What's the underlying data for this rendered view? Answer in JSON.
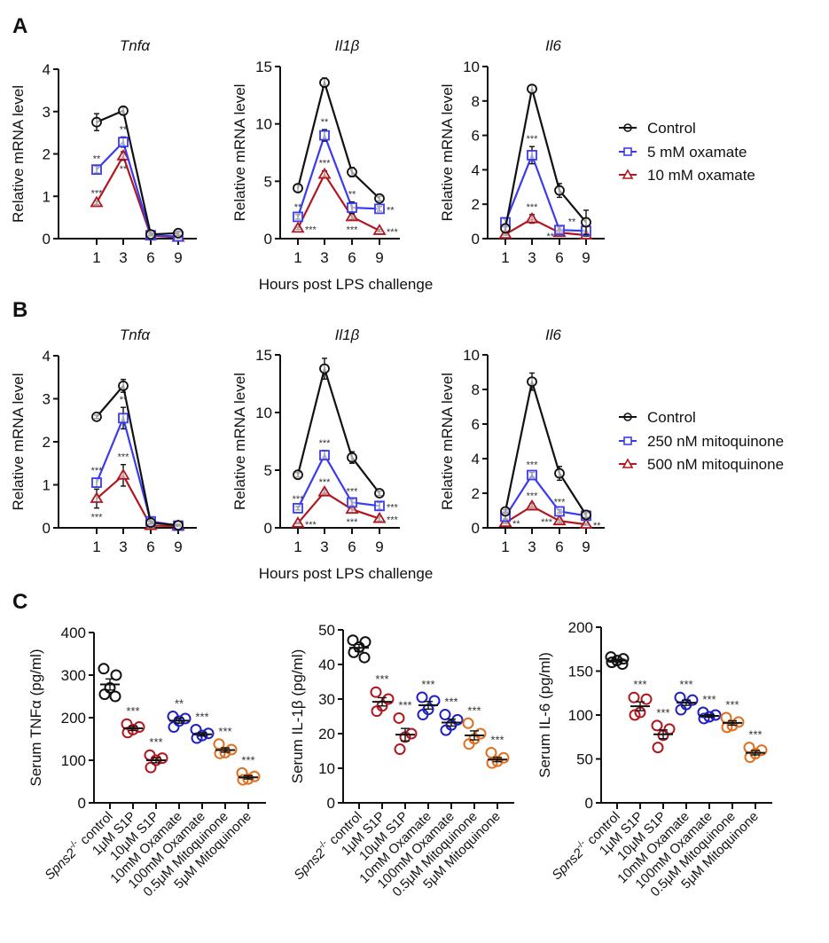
{
  "panels": {
    "A": {
      "letter": "A",
      "xlabel": "Hours post LPS challenge",
      "legend": [
        "Control",
        "5 mM oxamate",
        "10 mM oxamate"
      ]
    },
    "B": {
      "letter": "B",
      "xlabel": "Hours post LPS challenge",
      "legend": [
        "Control",
        "250 nM mitoquinone",
        "500 nM mitoquinone"
      ]
    },
    "C": {
      "letter": "C"
    }
  },
  "colors": {
    "control": "#111111",
    "low": "#3b3bf0",
    "high": "#b0171f",
    "s1p": "#b0171f",
    "oxamate": "#2020c0",
    "mito": "#e07020"
  },
  "chart_data": [
    {
      "id": "A-tnfa",
      "panel": "A",
      "type": "line",
      "title": "Tnfα",
      "xlabel": "Hours post LPS challenge",
      "ylabel": "Relative mRNA level",
      "x": [
        1,
        3,
        6,
        9
      ],
      "ylim": [
        0,
        4
      ],
      "yticks": [
        0,
        1,
        2,
        3,
        4
      ],
      "series": [
        {
          "name": "Control",
          "values": [
            2.75,
            3.02,
            0.1,
            0.13
          ],
          "err": [
            0.2,
            0.08,
            0.03,
            0.05
          ]
        },
        {
          "name": "5 mM oxamate",
          "values": [
            1.63,
            2.28,
            0.08,
            0.05
          ],
          "err": [
            0.08,
            0.12,
            0.02,
            0.02
          ],
          "stars": [
            "**",
            "**",
            "",
            ""
          ]
        },
        {
          "name": "10 mM oxamate",
          "values": [
            0.85,
            1.95,
            0.07,
            0.03
          ],
          "err": [
            0.04,
            0.1,
            0.02,
            0.02
          ],
          "stars": [
            "***",
            "**",
            "",
            ""
          ]
        }
      ]
    },
    {
      "id": "A-il1b",
      "panel": "A",
      "type": "line",
      "title": "Il1β",
      "xlabel": "Hours post LPS challenge",
      "ylabel": "Relative mRNA level",
      "x": [
        1,
        3,
        6,
        9
      ],
      "ylim": [
        0,
        15
      ],
      "yticks": [
        0,
        5,
        10,
        15
      ],
      "series": [
        {
          "name": "Control",
          "values": [
            4.4,
            13.6,
            5.8,
            3.5
          ],
          "err": [
            0.3,
            0.4,
            0.4,
            0.2
          ]
        },
        {
          "name": "5 mM oxamate",
          "values": [
            1.9,
            9.0,
            2.7,
            2.6
          ],
          "err": [
            0.2,
            0.5,
            0.5,
            0.2
          ],
          "stars": [
            "**",
            "**",
            "**",
            "**"
          ]
        },
        {
          "name": "10 mM oxamate",
          "values": [
            0.9,
            5.6,
            1.9,
            0.7
          ],
          "err": [
            0.1,
            0.3,
            0.2,
            0.1
          ],
          "stars": [
            "***",
            "***",
            "***",
            "***"
          ]
        }
      ]
    },
    {
      "id": "A-il6",
      "panel": "A",
      "type": "line",
      "title": "Il6",
      "xlabel": "Hours post LPS challenge",
      "ylabel": "Relative mRNA level",
      "x": [
        1,
        3,
        6,
        9
      ],
      "ylim": [
        0,
        10
      ],
      "yticks": [
        0,
        2,
        4,
        6,
        8,
        10
      ],
      "series": [
        {
          "name": "Control",
          "values": [
            0.6,
            8.7,
            2.8,
            0.95
          ],
          "err": [
            0.2,
            0.2,
            0.4,
            0.7
          ]
        },
        {
          "name": "5 mM oxamate",
          "values": [
            0.95,
            4.85,
            0.5,
            0.45
          ],
          "err": [
            0.2,
            0.5,
            0.2,
            0.3
          ],
          "stars": [
            "",
            "***",
            "**",
            ""
          ]
        },
        {
          "name": "10 mM oxamate",
          "values": [
            0.25,
            1.15,
            0.35,
            0.2
          ],
          "err": [
            0.05,
            0.25,
            0.1,
            0.05
          ],
          "stars": [
            "",
            "***",
            "**",
            ""
          ]
        }
      ]
    },
    {
      "id": "B-tnfa",
      "panel": "B",
      "type": "line",
      "title": "Tnfα",
      "xlabel": "Hours post LPS challenge",
      "ylabel": "Relative mRNA level",
      "x": [
        1,
        3,
        6,
        9
      ],
      "ylim": [
        0,
        4
      ],
      "yticks": [
        0,
        1,
        2,
        3,
        4
      ],
      "series": [
        {
          "name": "Control",
          "values": [
            2.58,
            3.3,
            0.12,
            0.06
          ],
          "err": [
            0.04,
            0.15,
            0.03,
            0.02
          ]
        },
        {
          "name": "250 nM mitoquinone",
          "values": [
            1.05,
            2.55,
            0.15,
            0.05
          ],
          "err": [
            0.1,
            0.25,
            0.03,
            0.02
          ],
          "stars": [
            "***",
            "**",
            "",
            ""
          ]
        },
        {
          "name": "500 nM mitoquinone",
          "values": [
            0.68,
            1.22,
            0.05,
            0.04
          ],
          "err": [
            0.22,
            0.25,
            0.02,
            0.02
          ],
          "stars": [
            "***",
            "***",
            "",
            ""
          ]
        }
      ]
    },
    {
      "id": "B-il1b",
      "panel": "B",
      "type": "line",
      "title": "Il1β",
      "xlabel": "Hours post LPS challenge",
      "ylabel": "Relative mRNA level",
      "x": [
        1,
        3,
        6,
        9
      ],
      "ylim": [
        0,
        15
      ],
      "yticks": [
        0,
        5,
        10,
        15
      ],
      "series": [
        {
          "name": "Control",
          "values": [
            4.6,
            13.8,
            6.1,
            3.0
          ],
          "err": [
            0.2,
            0.9,
            0.5,
            0.2
          ]
        },
        {
          "name": "250 nM mitoquinone",
          "values": [
            1.7,
            6.3,
            2.2,
            1.9
          ],
          "err": [
            0.15,
            0.4,
            0.3,
            0.3
          ],
          "stars": [
            "***",
            "***",
            "***",
            "***"
          ]
        },
        {
          "name": "500 nM mitoquinone",
          "values": [
            0.4,
            3.1,
            1.6,
            0.8
          ],
          "err": [
            0.05,
            0.2,
            0.3,
            0.2
          ],
          "stars": [
            "***",
            "***",
            "***",
            "***"
          ]
        }
      ]
    },
    {
      "id": "B-il6",
      "panel": "B",
      "type": "line",
      "title": "Il6",
      "xlabel": "Hours post LPS challenge",
      "ylabel": "Relative mRNA level",
      "x": [
        1,
        3,
        6,
        9
      ],
      "ylim": [
        0,
        10
      ],
      "yticks": [
        0,
        2,
        4,
        6,
        8,
        10
      ],
      "series": [
        {
          "name": "Control",
          "values": [
            0.95,
            8.45,
            3.15,
            0.75
          ],
          "err": [
            0.1,
            0.5,
            0.4,
            0.15
          ]
        },
        {
          "name": "250 nM mitoquinone",
          "values": [
            0.65,
            3.05,
            0.95,
            0.7
          ],
          "err": [
            0.15,
            0.15,
            0.1,
            0.1
          ],
          "stars": [
            "",
            "***",
            "***",
            ""
          ]
        },
        {
          "name": "500 nM mitoquinone",
          "values": [
            0.3,
            1.25,
            0.4,
            0.2
          ],
          "err": [
            0.05,
            0.15,
            0.1,
            0.05
          ],
          "stars": [
            "**",
            "***",
            "***",
            "**"
          ]
        }
      ]
    },
    {
      "id": "C-tnfa",
      "panel": "C",
      "type": "scatter",
      "title": "",
      "ylabel": "Serum TNFα (pg/ml)",
      "ylim": [
        0,
        400
      ],
      "yticks": [
        0,
        100,
        200,
        300,
        400
      ],
      "categories": [
        "Spns2-/- control",
        "1μM S1P",
        "10μM S1P",
        "10mM Oxamate",
        "100mM Oxamate",
        "0.5μM Mitoquinone",
        "5μM Mitoquinone"
      ],
      "groups": [
        {
          "points": [
            315,
            300,
            270,
            255,
            250
          ],
          "mean": 278,
          "sem": 13,
          "color": "control",
          "stars": ""
        },
        {
          "points": [
            185,
            178,
            172,
            165
          ],
          "mean": 175,
          "sem": 5,
          "color": "s1p",
          "stars": "***"
        },
        {
          "points": [
            112,
            105,
            100,
            83
          ],
          "mean": 100,
          "sem": 6,
          "color": "s1p",
          "stars": "***"
        },
        {
          "points": [
            203,
            198,
            192,
            178
          ],
          "mean": 193,
          "sem": 6,
          "color": "oxamate",
          "stars": "**"
        },
        {
          "points": [
            172,
            163,
            158,
            152
          ],
          "mean": 161,
          "sem": 4,
          "color": "oxamate",
          "stars": "***"
        },
        {
          "points": [
            138,
            125,
            118,
            116
          ],
          "mean": 124,
          "sem": 5,
          "color": "mito",
          "stars": "***"
        },
        {
          "points": [
            70,
            62,
            56,
            54
          ],
          "mean": 60,
          "sem": 4,
          "color": "mito",
          "stars": "***"
        }
      ]
    },
    {
      "id": "C-il1b",
      "panel": "C",
      "type": "scatter",
      "title": "",
      "ylabel": "Serum IL-1β (pg/ml)",
      "ylim": [
        0,
        50
      ],
      "yticks": [
        0,
        10,
        20,
        30,
        40,
        50
      ],
      "categories": [
        "Spns2-/- control",
        "1μM S1P",
        "10μM S1P",
        "10mM Oxamate",
        "100mM Oxamate",
        "0.5μM Mitoquinone",
        "5μM Mitoquinone"
      ],
      "groups": [
        {
          "points": [
            47,
            46.5,
            45,
            43.5,
            42
          ],
          "mean": 44.8,
          "sem": 1,
          "color": "control",
          "stars": ""
        },
        {
          "points": [
            32,
            30,
            28,
            26.5
          ],
          "mean": 29.2,
          "sem": 1.2,
          "color": "s1p",
          "stars": "***"
        },
        {
          "points": [
            24.5,
            20,
            19,
            15.5
          ],
          "mean": 19.7,
          "sem": 1.8,
          "color": "s1p",
          "stars": "***"
        },
        {
          "points": [
            30.5,
            29.5,
            27,
            25.5
          ],
          "mean": 28.2,
          "sem": 1.1,
          "color": "oxamate",
          "stars": "***"
        },
        {
          "points": [
            25.5,
            24,
            22.5,
            21
          ],
          "mean": 23.2,
          "sem": 1,
          "color": "oxamate",
          "stars": "***"
        },
        {
          "points": [
            23,
            20,
            18.5,
            17
          ],
          "mean": 19.5,
          "sem": 1.3,
          "color": "mito",
          "stars": "***"
        },
        {
          "points": [
            14.5,
            13,
            12,
            11.5
          ],
          "mean": 12.5,
          "sem": 0.6,
          "color": "mito",
          "stars": "***"
        }
      ]
    },
    {
      "id": "C-il6",
      "panel": "C",
      "type": "scatter",
      "title": "",
      "ylabel": "Serum IL-6 (pg/ml)",
      "ylim": [
        0,
        200
      ],
      "yticks": [
        0,
        50,
        100,
        150,
        200
      ],
      "categories": [
        "Spns2-/- control",
        "1μM S1P",
        "10μM S1P",
        "10mM Oxamate",
        "100mM Oxamate",
        "0.5μM Mitoquinone",
        "5μM Mitoquinone"
      ],
      "groups": [
        {
          "points": [
            166,
            164,
            162,
            160,
            158
          ],
          "mean": 162,
          "sem": 1.5,
          "color": "control",
          "stars": ""
        },
        {
          "points": [
            120,
            118,
            103,
            100
          ],
          "mean": 110,
          "sem": 5,
          "color": "s1p",
          "stars": "***"
        },
        {
          "points": [
            88,
            84,
            77,
            63
          ],
          "mean": 78,
          "sem": 5,
          "color": "s1p",
          "stars": "***"
        },
        {
          "points": [
            120,
            117,
            112,
            106
          ],
          "mean": 114,
          "sem": 3,
          "color": "oxamate",
          "stars": "***"
        },
        {
          "points": [
            103,
            100,
            98,
            96
          ],
          "mean": 99,
          "sem": 1.5,
          "color": "oxamate",
          "stars": "***"
        },
        {
          "points": [
            97,
            92,
            88,
            86
          ],
          "mean": 91,
          "sem": 2.5,
          "color": "mito",
          "stars": "***"
        },
        {
          "points": [
            63,
            60,
            56,
            52
          ],
          "mean": 57,
          "sem": 2.5,
          "color": "mito",
          "stars": "***"
        }
      ]
    }
  ]
}
